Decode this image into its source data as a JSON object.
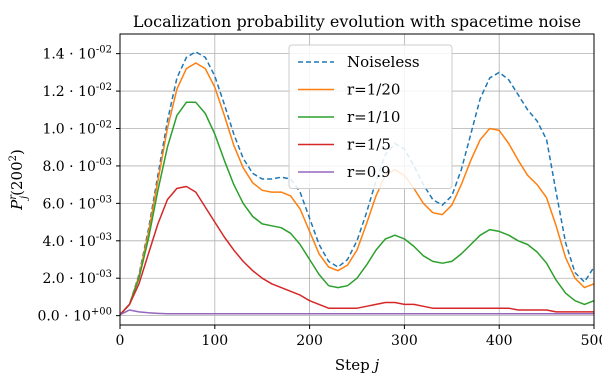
{
  "chart_data": {
    "type": "line",
    "title": "Localization probability evolution with spacetime noise",
    "xlabel": "Step j",
    "ylabel": "P_j^r(200^2)",
    "xlim": [
      0,
      500
    ],
    "ylim": [
      -0.0005,
      0.01505
    ],
    "grid": true,
    "legend_position": "top-center",
    "x_ticks": [
      0,
      100,
      200,
      300,
      400,
      500
    ],
    "x_tick_labels": [
      "0",
      "100",
      "200",
      "300",
      "400",
      "500"
    ],
    "y_ticks": [
      0,
      0.002,
      0.004,
      0.006,
      0.008,
      0.01,
      0.012,
      0.014
    ],
    "y_tick_labels": [
      "0.0 · 10^+00",
      "2.0 · 10^-03",
      "4.0 · 10^-03",
      "6.0 · 10^-03",
      "8.0 · 10^-03",
      "1.0 · 10^-02",
      "1.2 · 10^-02",
      "1.4 · 10^-02"
    ],
    "x": [
      0,
      10,
      20,
      30,
      40,
      50,
      60,
      70,
      80,
      90,
      100,
      110,
      120,
      130,
      140,
      150,
      160,
      170,
      180,
      190,
      200,
      210,
      220,
      230,
      240,
      250,
      260,
      270,
      280,
      290,
      300,
      310,
      320,
      330,
      340,
      350,
      360,
      370,
      380,
      390,
      400,
      410,
      420,
      430,
      440,
      450,
      460,
      470,
      480,
      490,
      500
    ],
    "series": [
      {
        "name": "Noiseless",
        "color": "#1f77b4",
        "dash": "dashed",
        "values": [
          5e-05,
          0.0006,
          0.0022,
          0.0046,
          0.0075,
          0.0104,
          0.0127,
          0.0138,
          0.0141,
          0.0138,
          0.0128,
          0.0113,
          0.0097,
          0.0084,
          0.0076,
          0.0073,
          0.0073,
          0.0074,
          0.0073,
          0.0066,
          0.0052,
          0.0038,
          0.0029,
          0.0026,
          0.003,
          0.004,
          0.0055,
          0.0072,
          0.0086,
          0.0092,
          0.0089,
          0.008,
          0.007,
          0.0062,
          0.0059,
          0.0064,
          0.0078,
          0.0097,
          0.0116,
          0.0127,
          0.013,
          0.0126,
          0.0118,
          0.011,
          0.0104,
          0.0094,
          0.0066,
          0.0039,
          0.0023,
          0.0018,
          0.0026
        ]
      },
      {
        "name": "r=1/20",
        "color": "#ff7f0e",
        "dash": "solid",
        "values": [
          5e-05,
          0.0006,
          0.0021,
          0.0044,
          0.0072,
          0.01,
          0.0121,
          0.0132,
          0.0135,
          0.0132,
          0.0122,
          0.0107,
          0.0091,
          0.0079,
          0.0071,
          0.0067,
          0.0066,
          0.0066,
          0.0064,
          0.0057,
          0.0045,
          0.0033,
          0.0026,
          0.0024,
          0.0027,
          0.0035,
          0.0049,
          0.0064,
          0.0075,
          0.0078,
          0.0075,
          0.0068,
          0.006,
          0.0055,
          0.0054,
          0.0059,
          0.007,
          0.0083,
          0.0094,
          0.01,
          0.0099,
          0.0092,
          0.0083,
          0.0075,
          0.007,
          0.0063,
          0.0048,
          0.0031,
          0.002,
          0.0015,
          0.0017
        ]
      },
      {
        "name": "r=1/10",
        "color": "#2ca02c",
        "dash": "solid",
        "values": [
          5e-05,
          0.0006,
          0.002,
          0.0041,
          0.0067,
          0.009,
          0.0107,
          0.0114,
          0.0114,
          0.0108,
          0.0097,
          0.0083,
          0.007,
          0.006,
          0.0053,
          0.0049,
          0.0048,
          0.0047,
          0.0044,
          0.0038,
          0.003,
          0.0022,
          0.0016,
          0.0015,
          0.0016,
          0.002,
          0.0027,
          0.0035,
          0.0041,
          0.0043,
          0.0041,
          0.0037,
          0.0032,
          0.0029,
          0.0028,
          0.0029,
          0.0033,
          0.0038,
          0.0043,
          0.0046,
          0.0045,
          0.0043,
          0.004,
          0.0038,
          0.0034,
          0.0028,
          0.0019,
          0.0012,
          0.0008,
          0.0006,
          0.0008
        ]
      },
      {
        "name": "r=1/5",
        "color": "#d62728",
        "dash": "solid",
        "values": [
          5e-05,
          0.0006,
          0.0017,
          0.0033,
          0.0049,
          0.0062,
          0.0068,
          0.0069,
          0.0066,
          0.0058,
          0.005,
          0.0042,
          0.0035,
          0.0029,
          0.0024,
          0.002,
          0.0017,
          0.0015,
          0.0013,
          0.0011,
          0.0008,
          0.0006,
          0.0004,
          0.0004,
          0.0004,
          0.0004,
          0.0005,
          0.0006,
          0.0007,
          0.0007,
          0.0006,
          0.0006,
          0.0005,
          0.0004,
          0.0004,
          0.0004,
          0.0004,
          0.0004,
          0.0004,
          0.0004,
          0.0004,
          0.0004,
          0.0003,
          0.0003,
          0.0003,
          0.0003,
          0.0002,
          0.0002,
          0.0002,
          0.0002,
          0.0002
        ]
      },
      {
        "name": "r=0.9",
        "color": "#9467bd",
        "dash": "solid",
        "values": [
          5e-05,
          0.0003,
          0.0002,
          0.00015,
          0.00012,
          0.0001,
          0.0001,
          0.0001,
          0.0001,
          0.0001,
          0.0001,
          0.0001,
          0.0001,
          0.0001,
          0.0001,
          0.0001,
          0.0001,
          0.0001,
          0.0001,
          0.0001,
          0.0001,
          0.0001,
          0.0001,
          0.0001,
          0.0001,
          0.0001,
          0.0001,
          0.0001,
          0.0001,
          0.0001,
          0.0001,
          0.0001,
          0.0001,
          0.0001,
          0.0001,
          0.0001,
          0.0001,
          0.0001,
          0.0001,
          0.0001,
          0.0001,
          0.0001,
          0.0001,
          0.0001,
          0.0001,
          0.0001,
          0.0001,
          0.0001,
          0.0001,
          0.0001,
          0.0001
        ]
      }
    ]
  }
}
